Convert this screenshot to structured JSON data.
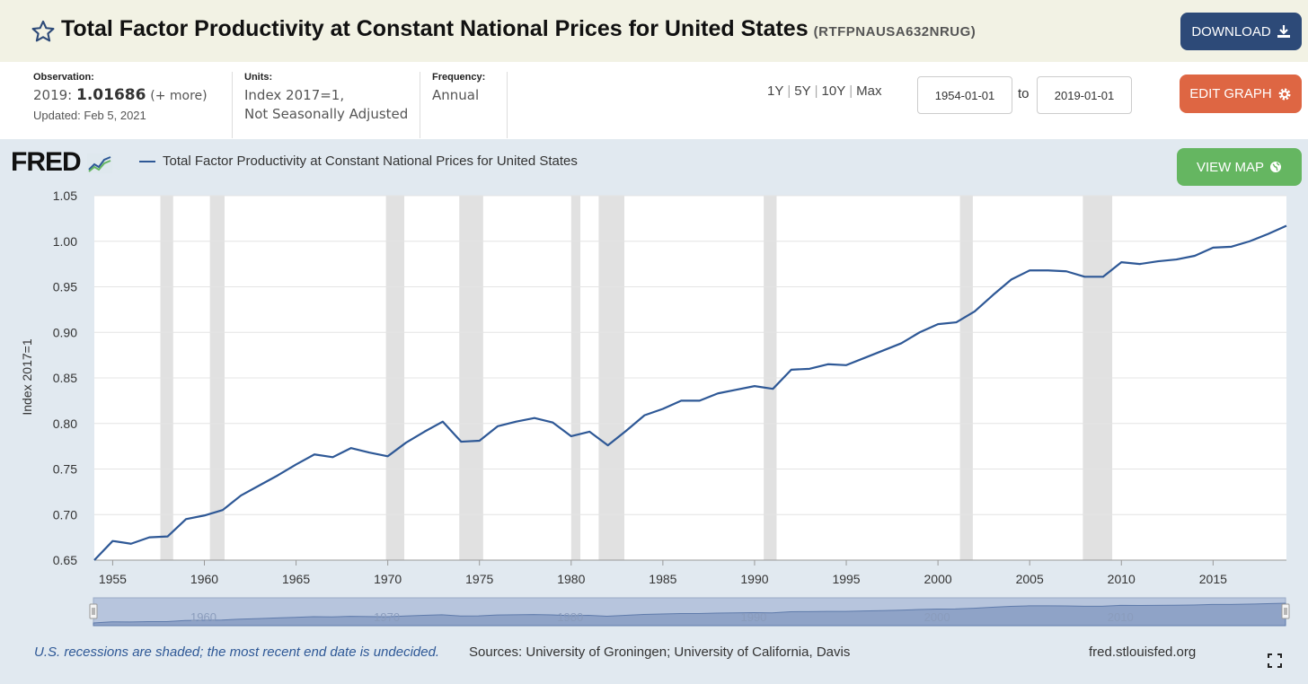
{
  "header": {
    "title": "Total Factor Productivity at Constant National Prices for United States",
    "series_id": "(RTFPNAUSA632NRUG)",
    "download_label": "DOWNLOAD",
    "edit_graph_label": "EDIT GRAPH",
    "view_map_label": "VIEW MAP"
  },
  "info": {
    "observation_label": "Observation:",
    "observation_year": "2019:",
    "observation_value": "1.01686",
    "observation_more": "(+ more)",
    "updated": "Updated: Feb 5, 2021",
    "units_label": "Units:",
    "units_line1": "Index 2017=1,",
    "units_line2": "Not Seasonally Adjusted",
    "frequency_label": "Frequency:",
    "frequency_value": "Annual"
  },
  "range": {
    "options": [
      "1Y",
      "5Y",
      "10Y",
      "Max"
    ],
    "from": "1954-01-01",
    "to_label": "to",
    "to": "2019-01-01"
  },
  "logo_text": "FRED",
  "footer": {
    "note": "U.S. recessions are shaded; the most recent end date is undecided.",
    "sources": "Sources: University of Groningen; University of California, Davis",
    "site": "fred.stlouisfed.org"
  },
  "icons": [
    "star-icon",
    "download-icon",
    "gear-icon",
    "globe-icon",
    "fred-chart-icon",
    "fullscreen-icon"
  ],
  "colors": {
    "line": "#2e5896",
    "recession": "#e1e1e1",
    "download": "#2d4a78",
    "edit": "#de6643",
    "map": "#65b661",
    "panel": "#e1e9f0"
  },
  "chart_data": {
    "type": "line",
    "ylabel": "Index 2017=1",
    "ylim": [
      0.65,
      1.05
    ],
    "yticks": [
      "0.65",
      "0.70",
      "0.75",
      "0.80",
      "0.85",
      "0.90",
      "0.95",
      "1.00",
      "1.05"
    ],
    "xticks": [
      "1955",
      "1960",
      "1965",
      "1970",
      "1975",
      "1980",
      "1985",
      "1990",
      "1995",
      "2000",
      "2005",
      "2010",
      "2015"
    ],
    "navigator_labels": [
      "1960",
      "1970",
      "1980",
      "1990",
      "2000",
      "2010"
    ],
    "grid": true,
    "legend_placement": "top-left",
    "series": [
      {
        "name": "Total Factor Productivity at Constant National Prices for United States",
        "x": [
          1954,
          1955,
          1956,
          1957,
          1958,
          1959,
          1960,
          1961,
          1962,
          1963,
          1964,
          1965,
          1966,
          1967,
          1968,
          1969,
          1970,
          1971,
          1972,
          1973,
          1974,
          1975,
          1976,
          1977,
          1978,
          1979,
          1980,
          1981,
          1982,
          1983,
          1984,
          1985,
          1986,
          1987,
          1988,
          1989,
          1990,
          1991,
          1992,
          1993,
          1994,
          1995,
          1996,
          1997,
          1998,
          1999,
          2000,
          2001,
          2002,
          2003,
          2004,
          2005,
          2006,
          2007,
          2008,
          2009,
          2010,
          2011,
          2012,
          2013,
          2014,
          2015,
          2016,
          2017,
          2018,
          2019
        ],
        "values": [
          0.65,
          0.671,
          0.668,
          0.675,
          0.676,
          0.695,
          0.699,
          0.705,
          0.721,
          0.732,
          0.743,
          0.755,
          0.766,
          0.763,
          0.773,
          0.768,
          0.764,
          0.779,
          0.791,
          0.802,
          0.78,
          0.781,
          0.797,
          0.802,
          0.806,
          0.801,
          0.786,
          0.791,
          0.776,
          0.792,
          0.809,
          0.816,
          0.825,
          0.825,
          0.833,
          0.837,
          0.841,
          0.838,
          0.859,
          0.86,
          0.865,
          0.864,
          0.872,
          0.88,
          0.888,
          0.9,
          0.909,
          0.911,
          0.923,
          0.941,
          0.958,
          0.968,
          0.968,
          0.967,
          0.961,
          0.961,
          0.977,
          0.975,
          0.978,
          0.98,
          0.984,
          0.993,
          0.994,
          1.0,
          1.008,
          1.017
        ]
      }
    ],
    "recessions": [
      [
        1957.6,
        1958.3
      ],
      [
        1960.3,
        1961.1
      ],
      [
        1969.9,
        1970.9
      ],
      [
        1973.9,
        1975.2
      ],
      [
        1980.0,
        1980.5
      ],
      [
        1981.5,
        1982.9
      ],
      [
        1990.5,
        1991.2
      ],
      [
        2001.2,
        2001.9
      ],
      [
        2007.9,
        2009.5
      ]
    ]
  }
}
